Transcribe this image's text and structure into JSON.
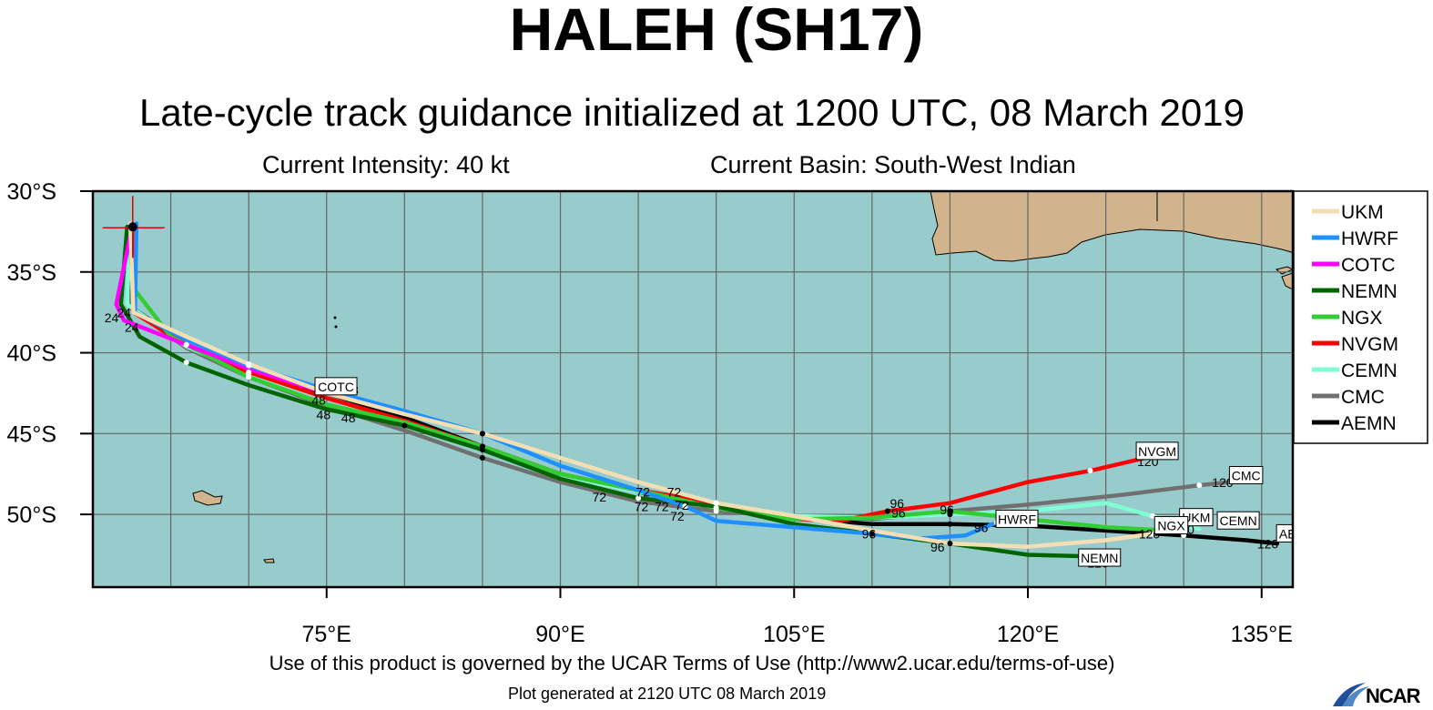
{
  "header": {
    "title": "HALEH (SH17)",
    "subtitle": "Late-cycle track guidance initialized at 1200 UTC, 08 March 2019",
    "intensity": "Current Intensity: 40 kt",
    "basin": "Current Basin: South-West Indian"
  },
  "footer": {
    "terms": "Use of this product is governed by the UCAR Terms of Use (http://www2.ucar.edu/terms-of-use)",
    "generated": "Plot generated at 2120 UTC   08 March 2019",
    "logo": "NCAR"
  },
  "chart_data": {
    "type": "line",
    "projection": "lon-lat",
    "xlim": [
      60,
      137
    ],
    "ylim": [
      -54.5,
      -30
    ],
    "x_ticks": [
      75,
      90,
      105,
      120,
      135
    ],
    "x_tick_labels": [
      "75°E",
      "90°E",
      "105°E",
      "120°E",
      "135°E"
    ],
    "y_ticks": [
      -30,
      -35,
      -40,
      -45,
      -50
    ],
    "y_tick_labels": [
      "30°S",
      "35°S",
      "40°S",
      "45°S",
      "50°S"
    ],
    "grid": true,
    "ocean_color": "#98cccc",
    "land_color": "#d2b48c",
    "current_position": {
      "lon": 62.5,
      "lat": -32.1
    },
    "legend_position": "right",
    "series": [
      {
        "name": "UKM",
        "color": "#f5deb3",
        "points": [
          [
            62.4,
            -32.0
          ],
          [
            62.6,
            -37.5
          ],
          [
            66,
            -39
          ],
          [
            70,
            -40.7
          ],
          [
            75,
            -42.5
          ],
          [
            80,
            -43.8
          ],
          [
            85,
            -45
          ],
          [
            90,
            -46.5
          ],
          [
            95,
            -48
          ],
          [
            100,
            -49.3
          ],
          [
            105,
            -50.1
          ],
          [
            110,
            -51
          ],
          [
            115,
            -51.8
          ],
          [
            120,
            -52
          ],
          [
            125,
            -51.6
          ],
          [
            128,
            -51.2
          ]
        ],
        "end_label": ""
      },
      {
        "name": "HWRF",
        "color": "#1e90ff",
        "points": [
          [
            62.8,
            -32.0
          ],
          [
            62.7,
            -37.5
          ],
          [
            66,
            -39.2
          ],
          [
            70,
            -40.8
          ],
          [
            75,
            -42.3
          ],
          [
            80,
            -43.6
          ],
          [
            85,
            -45
          ],
          [
            90,
            -47
          ],
          [
            95,
            -48.5
          ],
          [
            98,
            -49.5
          ],
          [
            100,
            -50.4
          ],
          [
            105,
            -50.8
          ],
          [
            110,
            -51.2
          ],
          [
            113,
            -51.5
          ],
          [
            116,
            -51.3
          ],
          [
            118,
            -50.5
          ]
        ],
        "end_label": "HWRF"
      },
      {
        "name": "COTC",
        "color": "#ff00ff",
        "points": [
          [
            62.5,
            -32.3
          ],
          [
            61.5,
            -37
          ],
          [
            62,
            -38
          ],
          [
            66,
            -39.5
          ],
          [
            70,
            -41
          ],
          [
            75,
            -42.5
          ]
        ],
        "end_label": "COTC"
      },
      {
        "name": "NEMN",
        "color": "#006400",
        "points": [
          [
            62.2,
            -32.2
          ],
          [
            61.8,
            -37
          ],
          [
            63,
            -39
          ],
          [
            66,
            -40.6
          ],
          [
            70,
            -42
          ],
          [
            75,
            -43.5
          ],
          [
            80,
            -44.5
          ],
          [
            85,
            -46
          ],
          [
            90,
            -47.8
          ],
          [
            95,
            -49
          ],
          [
            100,
            -49.5
          ],
          [
            105,
            -50.6
          ],
          [
            110,
            -51.2
          ],
          [
            115,
            -51.8
          ],
          [
            120,
            -52.5
          ],
          [
            124,
            -52.6
          ]
        ],
        "end_label": "NEMN"
      },
      {
        "name": "NGX",
        "color": "#32cd32",
        "points": [
          [
            62.3,
            -32.2
          ],
          [
            62.6,
            -36
          ],
          [
            65,
            -39
          ],
          [
            70,
            -41.5
          ],
          [
            75,
            -43.2
          ],
          [
            80,
            -44.3
          ],
          [
            85,
            -45.8
          ],
          [
            90,
            -47.5
          ],
          [
            95,
            -48.5
          ],
          [
            100,
            -49.6
          ],
          [
            105,
            -50.3
          ],
          [
            110,
            -50.2
          ],
          [
            115,
            -49.8
          ],
          [
            120,
            -50.3
          ],
          [
            125,
            -50.8
          ],
          [
            129,
            -51
          ]
        ],
        "end_label": "NGX"
      },
      {
        "name": "NVGM",
        "color": "#ff0000",
        "points": [
          [
            62.5,
            -32.2
          ],
          [
            62.6,
            -37.5
          ],
          [
            66,
            -39.5
          ],
          [
            70,
            -41.2
          ],
          [
            75,
            -42.8
          ],
          [
            80,
            -44.2
          ],
          [
            85,
            -45.8
          ],
          [
            90,
            -47.5
          ],
          [
            95,
            -48.5
          ],
          [
            100,
            -49.3
          ],
          [
            105,
            -50.3
          ],
          [
            108,
            -50.4
          ],
          [
            111,
            -49.8
          ],
          [
            115,
            -49.3
          ],
          [
            120,
            -48
          ],
          [
            124,
            -47.3
          ],
          [
            128,
            -46.4
          ]
        ],
        "end_label": "NVGM"
      },
      {
        "name": "CEMN",
        "color": "#7fffd4",
        "points": [
          [
            62.4,
            -32.1
          ],
          [
            62.2,
            -37
          ],
          [
            66,
            -39.6
          ],
          [
            70,
            -41.3
          ],
          [
            75,
            -42.8
          ],
          [
            80,
            -44.3
          ],
          [
            85,
            -46
          ],
          [
            90,
            -47.6
          ],
          [
            95,
            -48.6
          ],
          [
            100,
            -49.3
          ],
          [
            105,
            -50.1
          ],
          [
            110,
            -50.2
          ],
          [
            115,
            -50
          ],
          [
            120,
            -49.8
          ],
          [
            125,
            -49.3
          ],
          [
            128,
            -50.1
          ],
          [
            131,
            -50.9
          ]
        ],
        "end_label": "CEMN"
      },
      {
        "name": "CMC",
        "color": "#707070",
        "points": [
          [
            62.6,
            -32.1
          ],
          [
            62.5,
            -37.3
          ],
          [
            66,
            -39.7
          ],
          [
            70,
            -41.5
          ],
          [
            75,
            -43.3
          ],
          [
            80,
            -44.8
          ],
          [
            85,
            -46.5
          ],
          [
            90,
            -48
          ],
          [
            95,
            -49.2
          ],
          [
            100,
            -49.8
          ],
          [
            105,
            -50.1
          ],
          [
            110,
            -50.3
          ],
          [
            115,
            -49.8
          ],
          [
            120,
            -49.4
          ],
          [
            126,
            -48.8
          ],
          [
            131,
            -48.2
          ],
          [
            134,
            -47.9
          ]
        ],
        "end_label": "CMC"
      },
      {
        "name": "AEMN",
        "color": "#000000",
        "points": [
          [
            62.5,
            -32.2
          ],
          [
            62.5,
            -37.2
          ],
          [
            66,
            -39.5
          ],
          [
            70,
            -41.3
          ],
          [
            75,
            -42.5
          ],
          [
            80,
            -44
          ],
          [
            85,
            -45.8
          ],
          [
            90,
            -47.5
          ],
          [
            95,
            -48.6
          ],
          [
            100,
            -49.6
          ],
          [
            105,
            -50.2
          ],
          [
            110,
            -50.6
          ],
          [
            115,
            -50.6
          ],
          [
            120,
            -50.7
          ],
          [
            125,
            -51
          ],
          [
            130,
            -51.3
          ],
          [
            134,
            -51.6
          ],
          [
            136,
            -51.8
          ]
        ],
        "end_label": "AEMN"
      }
    ],
    "legend_items_unplaced": [
      {
        "name": "UKM",
        "box_label": "UKM"
      }
    ],
    "hour_labels": [
      {
        "text": "24",
        "lon": 61.2,
        "lat": -38.1
      },
      {
        "text": "24",
        "lon": 62.0,
        "lat": -37.8
      },
      {
        "text": "24",
        "lon": 62.5,
        "lat": -38.7
      },
      {
        "text": "48",
        "lon": 74.5,
        "lat": -43.2
      },
      {
        "text": "48",
        "lon": 74.8,
        "lat": -44.1
      },
      {
        "text": "48",
        "lon": 76.6,
        "lat": -42.6
      },
      {
        "text": "48",
        "lon": 76.4,
        "lat": -44.3
      },
      {
        "text": "72",
        "lon": 92.5,
        "lat": -49.2
      },
      {
        "text": "72",
        "lon": 95.3,
        "lat": -48.9
      },
      {
        "text": "72",
        "lon": 95.2,
        "lat": -49.8
      },
      {
        "text": "72",
        "lon": 96.5,
        "lat": -49.8
      },
      {
        "text": "72",
        "lon": 97.3,
        "lat": -48.9
      },
      {
        "text": "72",
        "lon": 97.8,
        "lat": -49.7
      },
      {
        "text": "72",
        "lon": 97.5,
        "lat": -50.4
      },
      {
        "text": "96",
        "lon": 111.6,
        "lat": -49.6
      },
      {
        "text": "96",
        "lon": 111.7,
        "lat": -50.2
      },
      {
        "text": "96",
        "lon": 109.8,
        "lat": -51.5
      },
      {
        "text": "96",
        "lon": 114.8,
        "lat": -50.0
      },
      {
        "text": "96",
        "lon": 114.2,
        "lat": -52.3
      },
      {
        "text": "96",
        "lon": 117.0,
        "lat": -51.1
      },
      {
        "text": "120",
        "lon": 124.5,
        "lat": -53.3
      },
      {
        "text": "120",
        "lon": 127.8,
        "lat": -51.5
      },
      {
        "text": "120",
        "lon": 130.0,
        "lat": -51.2
      },
      {
        "text": "120",
        "lon": 135.4,
        "lat": -52.1
      },
      {
        "text": "120",
        "lon": 127.7,
        "lat": -47.0
      },
      {
        "text": "120",
        "lon": 132.5,
        "lat": -48.3
      }
    ],
    "end_boxes": [
      {
        "text": "COTC",
        "lon": 75.6,
        "lat": -42.1
      },
      {
        "text": "NVGM",
        "lon": 128.3,
        "lat": -46.1
      },
      {
        "text": "CMC",
        "lon": 134.0,
        "lat": -47.6
      },
      {
        "text": "HWRF",
        "lon": 119.3,
        "lat": -50.3
      },
      {
        "text": "UKM",
        "lon": 130.8,
        "lat": -50.2
      },
      {
        "text": "CEMN",
        "lon": 133.5,
        "lat": -50.4
      },
      {
        "text": "NGX",
        "lon": 129.2,
        "lat": -50.7
      },
      {
        "text": "AEMN",
        "lon": 137.3,
        "lat": -51.2
      },
      {
        "text": "NEMN",
        "lon": 124.6,
        "lat": -52.7
      }
    ]
  }
}
